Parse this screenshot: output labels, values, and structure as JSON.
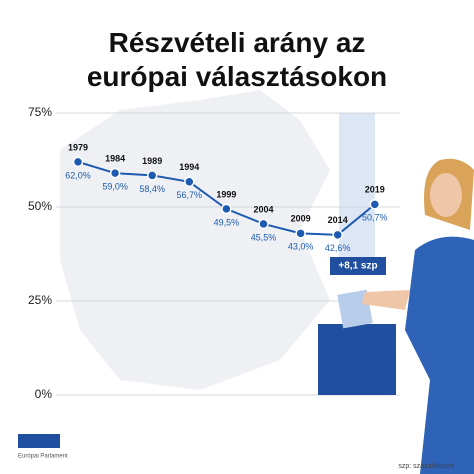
{
  "chart_data": {
    "type": "line",
    "title": "Részvételi arány az európai választásokon",
    "categories": [
      "1979",
      "1984",
      "1989",
      "1994",
      "1999",
      "2004",
      "2009",
      "2014",
      "2019"
    ],
    "series": [
      {
        "name": "Részvételi arány",
        "color": "#1d5bb0",
        "values": [
          62.0,
          59.0,
          58.4,
          56.7,
          49.5,
          45.5,
          43.0,
          42.6,
          50.7
        ],
        "value_labels": [
          "62,0%",
          "59,0%",
          "58,4%",
          "56,7%",
          "49,5%",
          "45,5%",
          "43,0%",
          "42,6%",
          "50,7%"
        ]
      }
    ],
    "ylim": [
      0,
      75
    ],
    "yticks": [
      {
        "value": 0,
        "label": "0%"
      },
      {
        "value": 25,
        "label": "25%"
      },
      {
        "value": 50,
        "label": "50%"
      },
      {
        "value": 75,
        "label": "75%"
      }
    ],
    "grid": true,
    "annotation": "+8,1 szp",
    "footnote": "szp: százalékpont",
    "logo_text": "Európai Parlament"
  }
}
